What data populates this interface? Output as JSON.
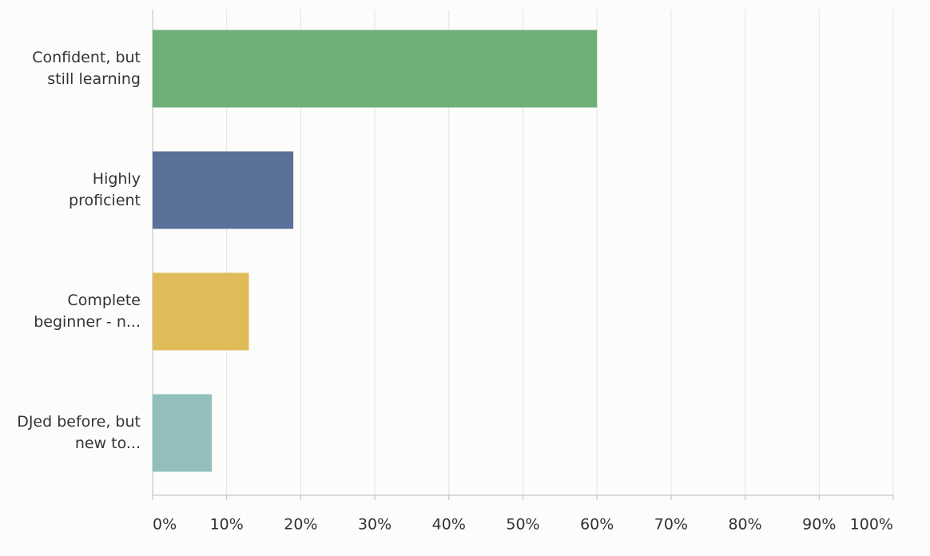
{
  "chart_data": {
    "type": "hbar",
    "categories": [
      "Confident, but still learning",
      "Highly proficient",
      "Complete beginner - n...",
      "DJed before, but new to..."
    ],
    "values": [
      60,
      19,
      13,
      8
    ],
    "colors": [
      "#6eaf78",
      "#5b7199",
      "#e0bb5a",
      "#92bfbc"
    ],
    "xlim": [
      0,
      100
    ],
    "xticks": [
      {
        "value": 0,
        "label": "0%"
      },
      {
        "value": 10,
        "label": "10%"
      },
      {
        "value": 20,
        "label": "20%"
      },
      {
        "value": 30,
        "label": "30%"
      },
      {
        "value": 40,
        "label": "40%"
      },
      {
        "value": 50,
        "label": "50%"
      },
      {
        "value": 60,
        "label": "60%"
      },
      {
        "value": 70,
        "label": "70%"
      },
      {
        "value": 80,
        "label": "80%"
      },
      {
        "value": 90,
        "label": "90%"
      },
      {
        "value": 100,
        "label": "100%"
      }
    ],
    "grid": true
  }
}
